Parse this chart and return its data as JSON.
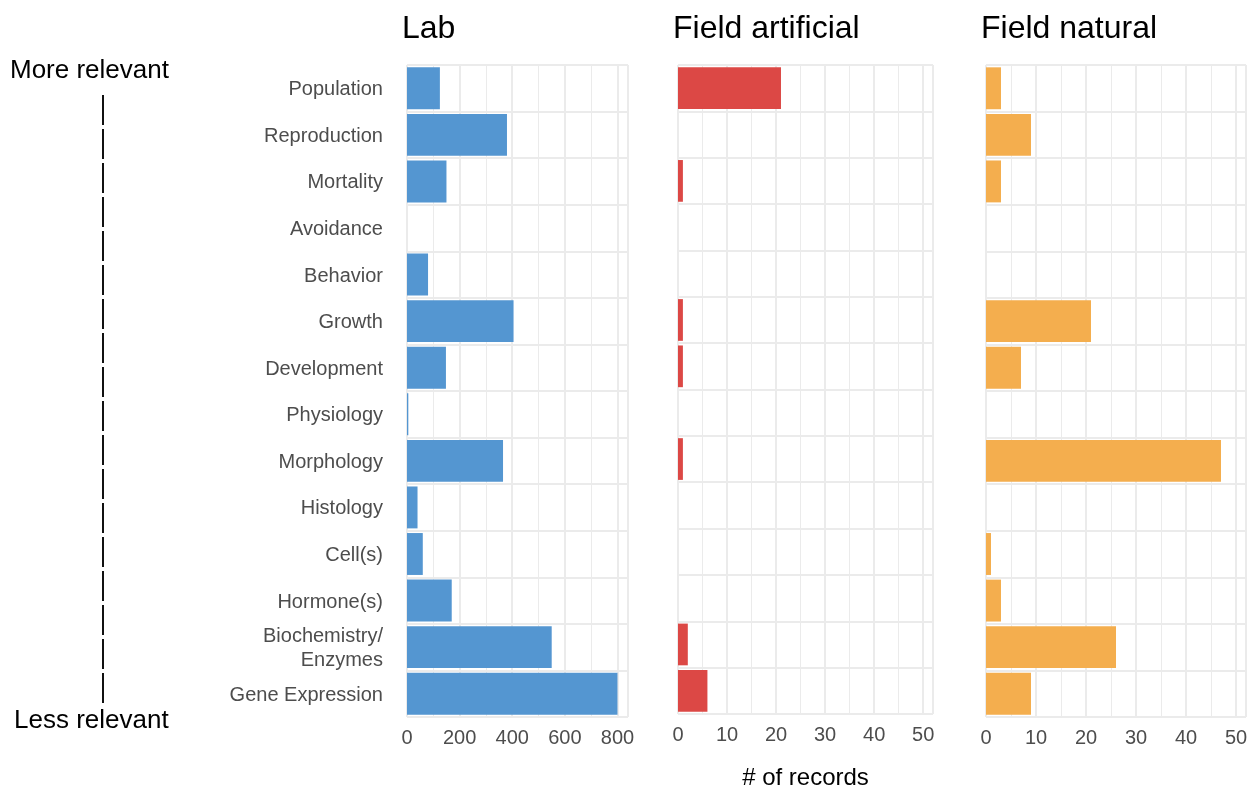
{
  "chart_data": [
    {
      "type": "bar",
      "orientation": "horizontal",
      "title": "Lab",
      "annotations": [
        "More relevant",
        "Less relevant"
      ],
      "categories": [
        "Population",
        "Reproduction",
        "Mortality",
        "Avoidance",
        "Behavior",
        "Growth",
        "Development",
        "Physiology",
        "Morphology",
        "Histology",
        "Cell(s)",
        "Hormone(s)",
        "Biochemistry/\nEnzymes",
        "Gene Expression"
      ],
      "values": [
        125,
        380,
        150,
        0,
        80,
        405,
        148,
        5,
        365,
        40,
        60,
        170,
        550,
        800
      ],
      "color": "#5496d1",
      "xlim": [
        0,
        840
      ],
      "xticks": [
        0,
        200,
        400,
        600,
        800
      ],
      "grid": true
    },
    {
      "type": "bar",
      "orientation": "horizontal",
      "title": "Field artificial",
      "xlabel": "# of records",
      "values": [
        21,
        0,
        1,
        0,
        0,
        1,
        1,
        0,
        1,
        0,
        0,
        0,
        2,
        6
      ],
      "color": "#dc4845",
      "xlim": [
        0,
        52
      ],
      "xticks": [
        0,
        10,
        20,
        30,
        40,
        50
      ],
      "grid": true,
      "tick_labels": "x"
    },
    {
      "type": "bar",
      "orientation": "horizontal",
      "title": "Field natural",
      "values": [
        3,
        9,
        3,
        0,
        0,
        21,
        7,
        0,
        47,
        0,
        1,
        3,
        26,
        9
      ],
      "color": "#f4ae4e",
      "xlim": [
        0,
        52
      ],
      "xticks": [
        0,
        10,
        20,
        30,
        40,
        50
      ],
      "grid": true,
      "tick_labels": "x"
    }
  ]
}
